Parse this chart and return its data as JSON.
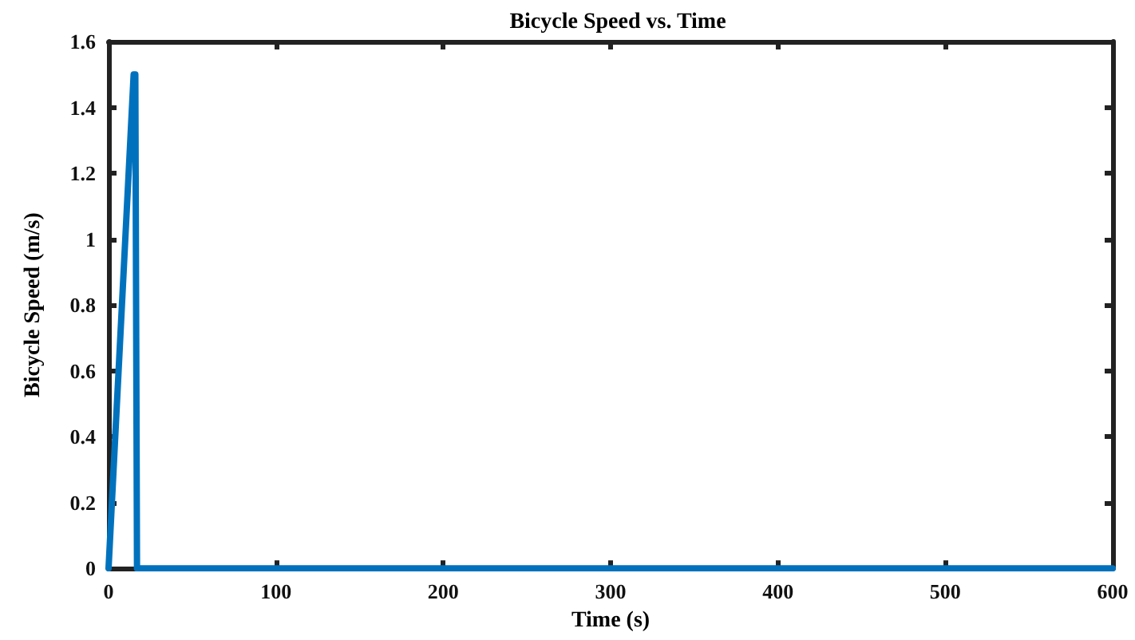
{
  "chart_data": {
    "type": "line",
    "title": "Bicycle Speed vs. Time",
    "xlabel": "Time (s)",
    "ylabel": "Bicycle Speed (m/s)",
    "x": [
      0,
      15,
      16,
      17,
      600
    ],
    "series": [
      {
        "color": "#0072bd",
        "values": [
          0,
          1.5,
          1.5,
          0,
          0
        ]
      }
    ],
    "xlim": [
      0,
      600
    ],
    "xticks": [
      0,
      100,
      200,
      300,
      400,
      500,
      600
    ],
    "ylim": [
      0,
      1.6
    ],
    "yticks": [
      0,
      0.2,
      0.4,
      0.6,
      0.8,
      1,
      1.2,
      1.4,
      1.6
    ],
    "grid": false,
    "marker": "none",
    "line_style": "solid"
  }
}
